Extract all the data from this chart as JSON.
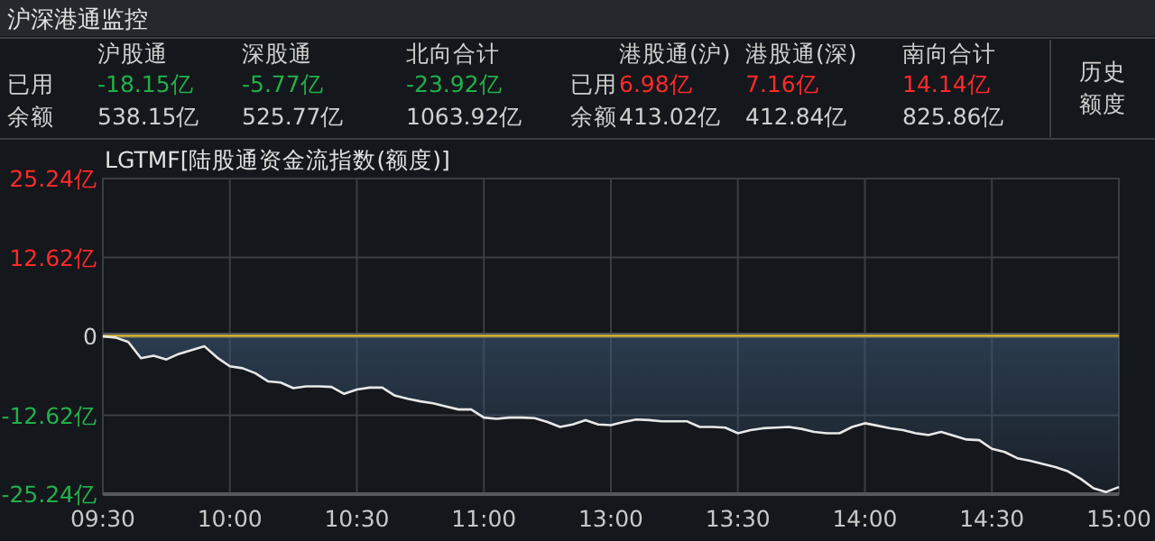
{
  "chart_data": [
    {
      "type": "other",
      "title": "沪深港通监控",
      "annotations": [
        "沪股通",
        "深股通",
        "北向合计",
        "港股通(沪)",
        "港股通(深)",
        "南向合计",
        "已用",
        "-18.15亿",
        "-5.77亿",
        "-23.92亿",
        "已用",
        "6.98亿",
        "7.16亿",
        "14.14亿",
        "余额",
        "538.15亿",
        "525.77亿",
        "1063.92亿",
        "余额",
        "413.02亿",
        "412.84亿",
        "825.86亿",
        "历史额度"
      ],
      "colors": [
        "#d0d0d0",
        "#d0d0d0",
        "#d0d0d0",
        "#d0d0d0",
        "#d0d0d0",
        "#d0d0d0",
        "#d0d0d0",
        "#22b04a",
        "#22b04a",
        "#22b04a",
        "#d0d0d0",
        "#ff2a2a",
        "#ff2a2a",
        "#ff2a2a",
        "#d0d0d0",
        "#d0d0d0",
        "#d0d0d0",
        "#d0d0d0",
        "#d0d0d0",
        "#d0d0d0",
        "#d0d0d0",
        "#d0d0d0",
        "#d0d0d0"
      ]
    },
    {
      "type": "area",
      "title": "LGTMF[陆股通资金流指数(额度)]",
      "categories": [
        "09:30",
        null,
        null,
        null,
        null,
        null,
        null,
        null,
        null,
        null,
        "10:00",
        null,
        null,
        null,
        null,
        null,
        null,
        null,
        null,
        null,
        "10:30",
        null,
        null,
        null,
        null,
        null,
        null,
        null,
        null,
        null,
        "11:00",
        null,
        null,
        null,
        null,
        null,
        null,
        null,
        null,
        null,
        "13:00",
        null,
        null,
        null,
        null,
        null,
        null,
        null,
        null,
        null,
        "13:30",
        null,
        null,
        null,
        null,
        null,
        null,
        null,
        null,
        null,
        "14:00",
        null,
        null,
        null,
        null,
        null,
        null,
        null,
        null,
        null,
        "14:30",
        null,
        null,
        null,
        null,
        null,
        null,
        null,
        null,
        null,
        "15:00"
      ],
      "series": [
        {
          "color": "#e8e8e8",
          "values": [
            0,
            -0.2,
            -0.9,
            -3.5,
            -3.1,
            -3.7,
            -2.8,
            -2.2,
            -1.6,
            -3.4,
            -4.8,
            -5.1,
            -5.9,
            -7.2,
            -7.4,
            -8.3,
            -8.0,
            -8.0,
            -8.1,
            -9.2,
            -8.5,
            -8.2,
            -8.2,
            -9.5,
            -10.0,
            -10.4,
            -10.7,
            -11.2,
            -11.7,
            -11.7,
            -13.0,
            -13.2,
            -13.0,
            -13.0,
            -13.1,
            -13.7,
            -14.5,
            -14.1,
            -13.4,
            -14.1,
            -14.2,
            -13.7,
            -13.3,
            -13.4,
            -13.6,
            -13.6,
            -13.6,
            -14.5,
            -14.5,
            -14.6,
            -15.5,
            -15.0,
            -14.7,
            -14.6,
            -14.5,
            -14.8,
            -15.3,
            -15.5,
            -15.5,
            -14.5,
            -13.9,
            -14.3,
            -14.7,
            -15.0,
            -15.5,
            -15.8,
            -15.3,
            -15.9,
            -16.5,
            -16.6,
            -18.0,
            -18.5,
            -19.5,
            -19.9,
            -20.4,
            -20.9,
            -21.6,
            -22.8,
            -24.3,
            -24.9,
            -24.1
          ]
        }
      ],
      "ylim": [
        -25.24,
        25.24
      ],
      "yticks": [
        {
          "value": 25.24,
          "label": "25.24亿"
        },
        {
          "value": 12.62,
          "label": "12.62亿"
        },
        0,
        {
          "value": -12.62,
          "label": "-12.62亿"
        },
        {
          "value": -25.24,
          "label": "-25.24亿"
        }
      ],
      "grid": true,
      "ref_lines": [
        {
          "axis": "y",
          "value": 0,
          "color": "#f5c518"
        }
      ]
    }
  ]
}
